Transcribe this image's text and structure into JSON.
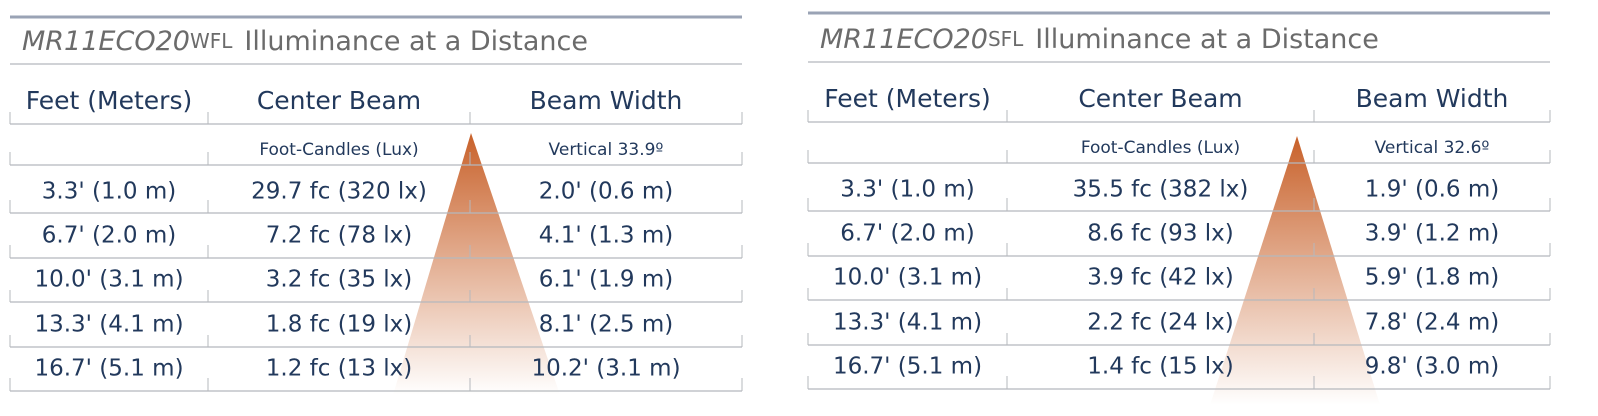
{
  "tables": [
    {
      "model": "MR11ECO20",
      "variant": "WFL",
      "title": "Illuminance at a Distance",
      "headers": [
        "Feet (Meters)",
        "Center Beam",
        "Beam Width"
      ],
      "subheaders": [
        "Foot-Candles (Lux)",
        "Vertical 33.9º"
      ],
      "rows": [
        [
          "3.3' (1.0 m)",
          "29.7 fc (320 lx)",
          "2.0' (0.6 m)"
        ],
        [
          "6.7' (2.0 m)",
          "7.2 fc (78 lx)",
          "4.1' (1.3 m)"
        ],
        [
          "10.0' (3.1 m)",
          "3.2 fc (35 lx)",
          "6.1' (1.9 m)"
        ],
        [
          "13.3' (4.1 m)",
          "1.8 fc (19 lx)",
          "8.1' (2.5 m)"
        ],
        [
          "16.7' (5.1 m)",
          "1.2 fc (13 lx)",
          "10.2' (3.1 m)"
        ]
      ]
    },
    {
      "model": "MR11ECO20",
      "variant": "SFL",
      "title": "Illuminance at a Distance",
      "headers": [
        "Feet (Meters)",
        "Center Beam",
        "Beam Width"
      ],
      "subheaders": [
        "Foot-Candles (Lux)",
        "Vertical 32.6º"
      ],
      "rows": [
        [
          "3.3' (1.0 m)",
          "35.5 fc (382 lx)",
          "1.9' (0.6 m)"
        ],
        [
          "6.7' (2.0 m)",
          "8.6 fc (93 lx)",
          "3.9' (1.2 m)"
        ],
        [
          "10.0' (3.1 m)",
          "3.9 fc (42 lx)",
          "5.9' (1.8 m)"
        ],
        [
          "13.3' (4.1 m)",
          "2.2 fc (24 lx)",
          "7.8' (2.4 m)"
        ],
        [
          "16.7' (5.1 m)",
          "1.4 fc (15 lx)",
          "9.8' (3.0 m)"
        ]
      ]
    }
  ]
}
